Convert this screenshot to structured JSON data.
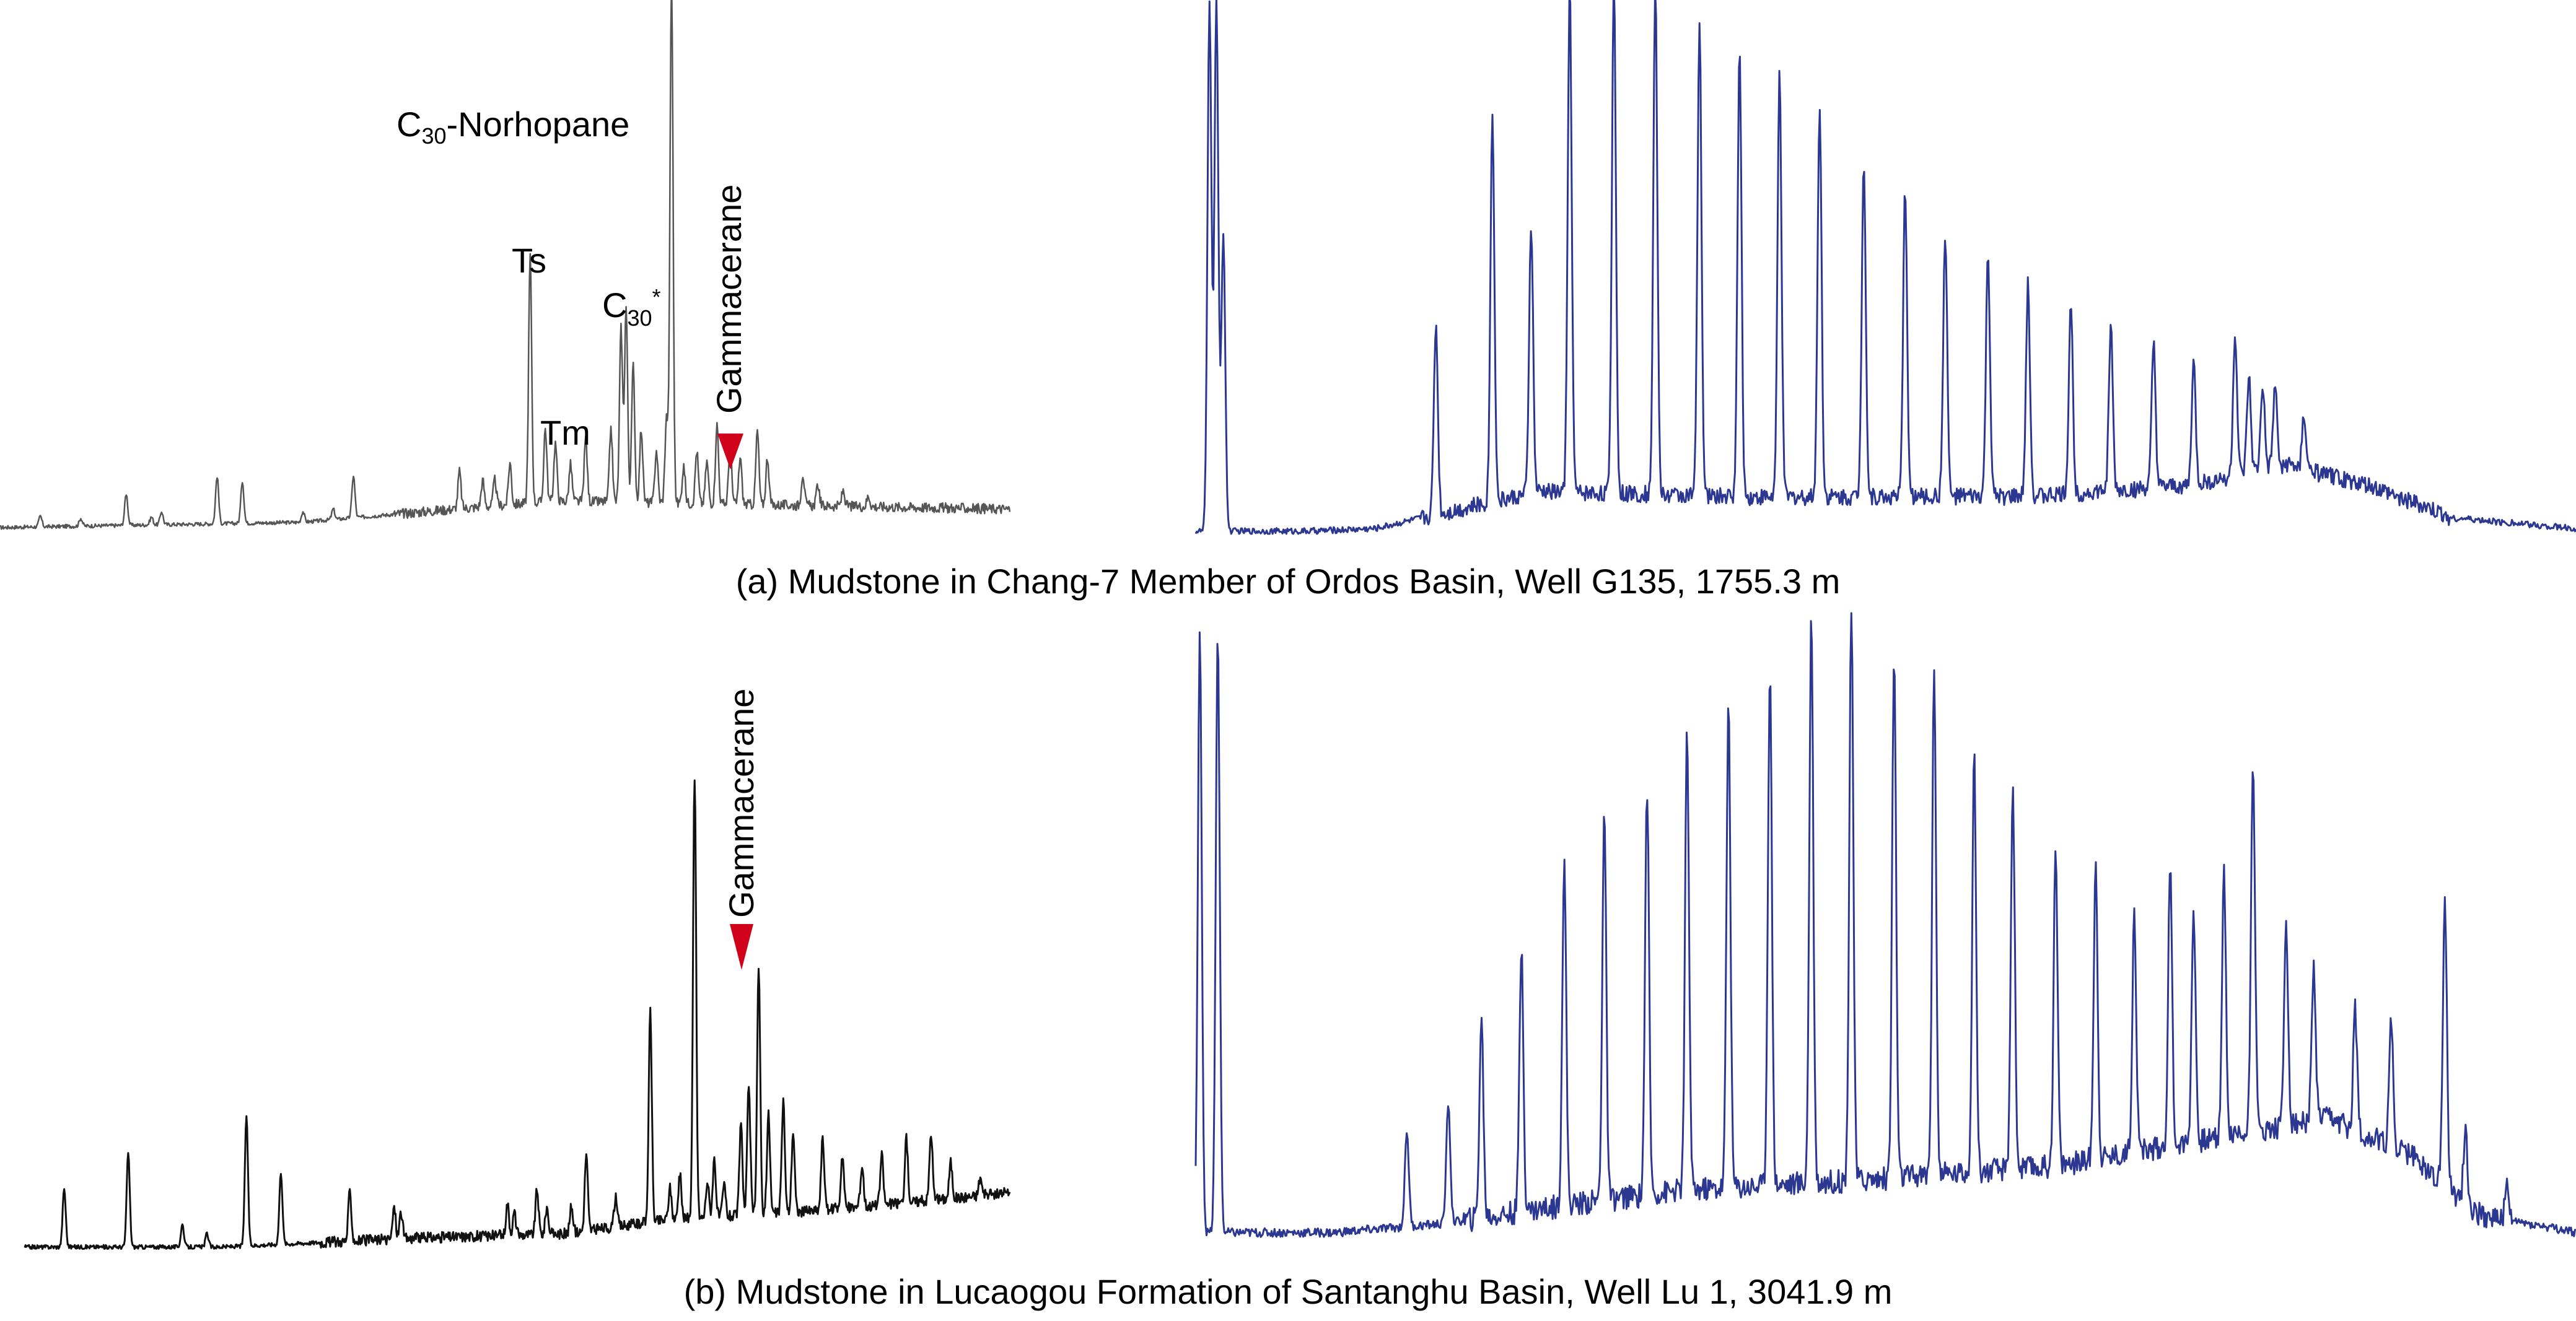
{
  "figure": {
    "caption_a": "(a) Mudstone in Chang-7 Member of Ordos Basin, Well G135, 1755.3 m",
    "caption_b": "(b) Mudstone in Lucaogou Formation of Santanghu Basin, Well Lu 1, 3041.9 m"
  },
  "annotations_a": {
    "norhopane_prefix": "C",
    "norhopane_sub": "30",
    "norhopane_rest": "-Norhopane",
    "ts": "Ts",
    "tm": "Tm",
    "c30_prefix": "C",
    "c30_sub": "30",
    "c30_star": "*",
    "gammacerane": "Gammacerane"
  },
  "annotations_b": {
    "gammacerane": "Gammacerane"
  },
  "colors": {
    "terpane_trace_a": "#555555",
    "terpane_trace_b": "#111111",
    "gc_trace": "#2b3791",
    "marker": "#d0021b"
  },
  "chart_data": [
    {
      "type": "line",
      "panel": "a-left",
      "description_units": "relative retention time (0-100) vs relative abundance (0-100)",
      "xlim": [
        0,
        100
      ],
      "ylim": [
        0,
        100
      ],
      "baseline": [
        [
          0,
          0.5
        ],
        [
          30,
          1.5
        ],
        [
          45,
          4
        ],
        [
          55,
          5.5
        ],
        [
          70,
          5
        ],
        [
          85,
          4.5
        ],
        [
          100,
          4
        ]
      ],
      "peaks": [
        [
          4,
          2
        ],
        [
          8,
          1.5
        ],
        [
          12.5,
          6
        ],
        [
          15,
          1.5
        ],
        [
          16,
          2.5
        ],
        [
          21.5,
          9
        ],
        [
          24,
          8
        ],
        [
          30,
          2
        ],
        [
          33,
          2
        ],
        [
          35,
          8
        ],
        [
          45.5,
          7
        ],
        [
          47.8,
          5
        ],
        [
          49,
          5
        ],
        [
          50.5,
          8
        ],
        [
          52.5,
          47
        ],
        [
          54,
          14
        ],
        [
          55,
          11
        ],
        [
          56.5,
          7
        ],
        [
          58,
          12
        ],
        [
          60.5,
          14
        ],
        [
          61.5,
          33
        ],
        [
          62,
          37
        ],
        [
          62.7,
          26
        ],
        [
          63.5,
          14
        ],
        [
          65,
          10
        ],
        [
          66,
          16
        ],
        [
          66.5,
          100
        ],
        [
          67.7,
          7
        ],
        [
          69,
          10
        ],
        [
          70,
          8
        ],
        [
          71,
          15
        ],
        [
          72.3,
          11
        ],
        [
          73.3,
          9
        ],
        [
          75,
          14
        ],
        [
          76,
          9
        ],
        [
          79.5,
          6
        ],
        [
          81,
          4
        ],
        [
          83.5,
          3
        ],
        [
          86,
          2
        ]
      ]
    },
    {
      "type": "line",
      "panel": "a-right",
      "description_units": "relative retention time (0-100) vs relative abundance (0-100)",
      "xlim": [
        0,
        100
      ],
      "ylim": [
        0,
        100
      ],
      "solvent_peaks": [
        [
          1,
          100
        ],
        [
          1.5,
          100
        ],
        [
          2,
          56
        ]
      ],
      "baseline": [
        [
          0,
          0.5
        ],
        [
          8,
          0.5
        ],
        [
          13,
          1
        ],
        [
          18,
          4
        ],
        [
          25,
          8
        ],
        [
          40,
          7
        ],
        [
          60,
          7
        ],
        [
          72,
          9
        ],
        [
          79,
          13
        ],
        [
          85,
          9
        ],
        [
          91,
          3
        ],
        [
          100,
          1
        ]
      ],
      "peaks": [
        [
          17.4,
          36
        ],
        [
          21.5,
          73
        ],
        [
          24.3,
          51
        ],
        [
          27.1,
          96
        ],
        [
          30.3,
          98
        ],
        [
          33.3,
          96
        ],
        [
          36.5,
          89
        ],
        [
          39.4,
          84
        ],
        [
          42.3,
          80
        ],
        [
          45.2,
          74
        ],
        [
          48.4,
          64
        ],
        [
          51.4,
          58
        ],
        [
          54.3,
          50
        ],
        [
          57.4,
          46
        ],
        [
          60.3,
          40
        ],
        [
          63.4,
          36
        ],
        [
          66.3,
          31
        ],
        [
          69.4,
          27
        ],
        [
          72.3,
          23
        ],
        [
          75.3,
          27
        ],
        [
          78.2,
          15
        ],
        [
          77.3,
          16
        ],
        [
          76.3,
          18
        ],
        [
          80.3,
          10
        ]
      ]
    },
    {
      "type": "line",
      "panel": "b-left",
      "description_units": "relative retention time (0-100) vs relative abundance (0-100)",
      "xlim": [
        0,
        100
      ],
      "ylim": [
        0,
        100
      ],
      "baseline": [
        [
          0,
          2
        ],
        [
          20,
          2
        ],
        [
          40,
          4
        ],
        [
          55,
          5
        ],
        [
          65,
          8
        ],
        [
          80,
          10
        ],
        [
          90,
          12
        ],
        [
          100,
          14
        ]
      ],
      "peaks": [
        [
          4,
          13
        ],
        [
          10.5,
          21
        ],
        [
          16,
          5
        ],
        [
          18.5,
          3
        ],
        [
          22.5,
          29
        ],
        [
          26,
          16
        ],
        [
          33,
          11
        ],
        [
          37.5,
          7
        ],
        [
          38.2,
          6
        ],
        [
          49,
          7
        ],
        [
          49.7,
          5
        ],
        [
          52,
          10
        ],
        [
          53,
          6
        ],
        [
          55.5,
          6
        ],
        [
          57,
          17
        ],
        [
          60,
          7
        ],
        [
          63.5,
          47
        ],
        [
          65.5,
          7
        ],
        [
          66.5,
          10
        ],
        [
          68,
          100
        ],
        [
          69.3,
          8
        ],
        [
          70,
          13
        ],
        [
          71,
          7
        ],
        [
          72.7,
          20
        ],
        [
          73.5,
          29
        ],
        [
          74.5,
          55
        ],
        [
          75.5,
          22
        ],
        [
          77,
          25
        ],
        [
          78,
          18
        ],
        [
          81,
          16
        ],
        [
          83,
          12
        ],
        [
          85,
          9
        ],
        [
          87,
          11
        ],
        [
          89.5,
          14
        ],
        [
          92,
          15
        ],
        [
          94,
          8
        ],
        [
          97,
          4
        ]
      ]
    },
    {
      "type": "line",
      "panel": "b-right",
      "description_units": "relative retention time (0-100) vs relative abundance (0-100)",
      "xlim": [
        0,
        100
      ],
      "ylim": [
        0,
        100
      ],
      "solvent_peaks": [
        [
          0.3,
          100
        ],
        [
          1.6,
          100
        ]
      ],
      "baseline": [
        [
          0,
          1
        ],
        [
          10,
          1
        ],
        [
          18,
          2.5
        ],
        [
          25,
          5
        ],
        [
          35,
          8
        ],
        [
          50,
          10
        ],
        [
          62,
          12
        ],
        [
          72,
          16
        ],
        [
          82,
          20
        ],
        [
          88,
          14
        ],
        [
          93,
          4
        ],
        [
          100,
          1
        ]
      ],
      "peaks": [
        [
          15.3,
          16
        ],
        [
          18.3,
          20
        ],
        [
          20.7,
          33
        ],
        [
          23.6,
          44
        ],
        [
          26.7,
          57
        ],
        [
          29.6,
          65
        ],
        [
          32.7,
          68
        ],
        [
          35.6,
          76
        ],
        [
          38.6,
          81
        ],
        [
          41.6,
          86
        ],
        [
          44.6,
          95
        ],
        [
          47.5,
          97
        ],
        [
          50.6,
          87
        ],
        [
          53.5,
          84
        ],
        [
          56.4,
          69
        ],
        [
          59.2,
          64
        ],
        [
          62.3,
          52
        ],
        [
          65.2,
          49
        ],
        [
          68,
          40
        ],
        [
          70.6,
          46
        ],
        [
          72.3,
          39
        ],
        [
          74.5,
          44
        ],
        [
          76.6,
          63
        ],
        [
          79,
          34
        ],
        [
          81,
          25
        ],
        [
          84,
          20
        ],
        [
          86.6,
          21
        ],
        [
          90.5,
          49
        ],
        [
          92,
          12
        ],
        [
          95,
          5
        ]
      ]
    }
  ]
}
